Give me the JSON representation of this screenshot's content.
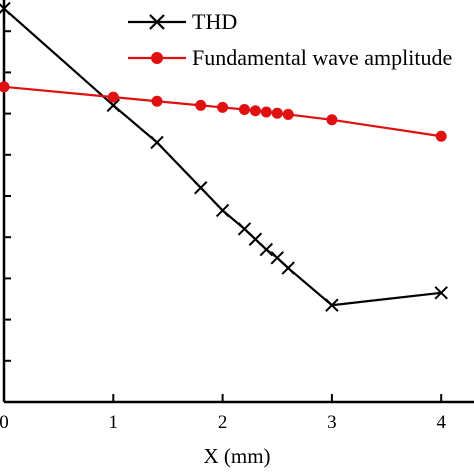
{
  "chart_data": {
    "type": "line",
    "xlabel": "X (mm)",
    "xlim": [
      0,
      4.3
    ],
    "ylim": [
      0,
      1
    ],
    "x_ticks": [
      0,
      1,
      2,
      3,
      4
    ],
    "x_tick_labels": [
      "0",
      "1",
      "2",
      "3",
      "4"
    ],
    "y_ticks": [
      0.1,
      0.2,
      0.3,
      0.4,
      0.5,
      0.6,
      0.7,
      0.8,
      0.9
    ],
    "legend_position": "top-right",
    "series": [
      {
        "name": "THD",
        "color": "#000000",
        "marker": "x",
        "x": [
          0,
          1,
          1.4,
          1.8,
          2.0,
          2.2,
          2.3,
          2.4,
          2.5,
          2.6,
          3.0,
          4.0
        ],
        "y": [
          0.955,
          0.72,
          0.63,
          0.52,
          0.465,
          0.42,
          0.395,
          0.37,
          0.35,
          0.325,
          0.235,
          0.265
        ]
      },
      {
        "name": "Fundamental wave amplitude",
        "color": "#e01010",
        "marker": "circle",
        "x": [
          0,
          1,
          1.4,
          1.8,
          2.0,
          2.2,
          2.3,
          2.4,
          2.5,
          2.6,
          3.0,
          4.0
        ],
        "y": [
          0.765,
          0.74,
          0.73,
          0.72,
          0.715,
          0.71,
          0.707,
          0.704,
          0.701,
          0.698,
          0.685,
          0.645
        ]
      }
    ]
  }
}
